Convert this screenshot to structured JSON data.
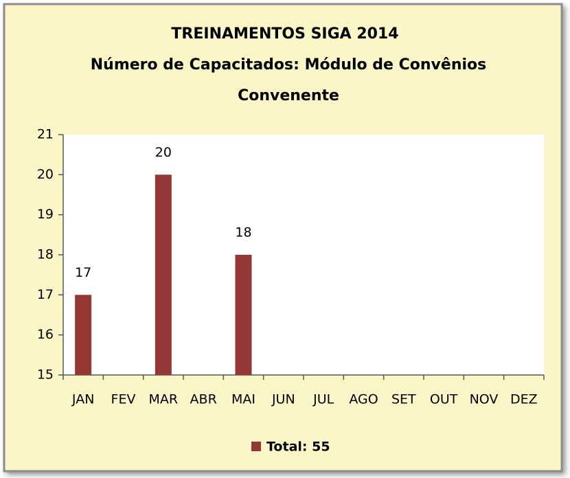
{
  "chart_data": {
    "type": "bar",
    "title": "TREINAMENTOS  SIGA  2014",
    "subtitle": [
      "Número de Capacitados:  Módulo de Convênios",
      "Convenente"
    ],
    "categories": [
      "JAN",
      "FEV",
      "MAR",
      "ABR",
      "MAI",
      "JUN",
      "JUL",
      "AGO",
      "SET",
      "OUT",
      "NOV",
      "DEZ"
    ],
    "series": [
      {
        "name": "Total: 55",
        "color": "#953735",
        "values": [
          17,
          null,
          20,
          null,
          18,
          null,
          null,
          null,
          null,
          null,
          null,
          null
        ]
      }
    ],
    "ylim": [
      15,
      21
    ],
    "yticks": [
      15,
      16,
      17,
      18,
      19,
      20,
      21
    ],
    "legend": "bottom"
  }
}
